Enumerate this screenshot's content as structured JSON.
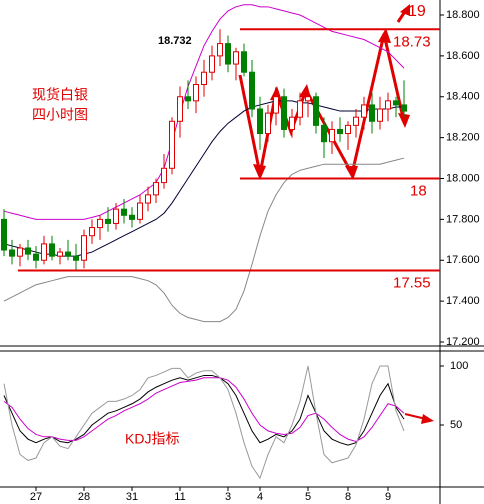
{
  "chart_data": {
    "type": "candlestick",
    "title": "现货白银",
    "subtitle": "四小时图",
    "categories": [
      null,
      null,
      null,
      null,
      "27",
      null,
      null,
      null,
      null,
      null,
      "28",
      null,
      null,
      null,
      null,
      null,
      "31",
      null,
      null,
      null,
      null,
      null,
      "11",
      null,
      null,
      null,
      null,
      null,
      "3",
      null,
      null,
      null,
      "4",
      null,
      null,
      null,
      null,
      null,
      "5",
      null,
      null,
      null,
      null,
      "8",
      null,
      null,
      null,
      null,
      "9",
      null,
      null
    ],
    "open": [
      17.8,
      17.65,
      17.62,
      17.66,
      17.63,
      17.6,
      17.68,
      17.62,
      17.64,
      17.62,
      17.6,
      17.72,
      17.76,
      17.8,
      17.78,
      17.85,
      17.82,
      17.8,
      17.88,
      17.92,
      17.98,
      18.05,
      18.28,
      18.4,
      18.38,
      18.46,
      18.52,
      18.6,
      18.66,
      18.56,
      18.62,
      18.52,
      18.34,
      18.22,
      18.32,
      18.4,
      18.24,
      18.3,
      18.38,
      18.4,
      18.26,
      18.18,
      18.24,
      18.22,
      18.26,
      18.3,
      18.36,
      18.28,
      18.34,
      18.38,
      18.36
    ],
    "high": [
      17.85,
      17.7,
      17.68,
      17.7,
      17.67,
      17.72,
      17.72,
      17.66,
      17.7,
      17.68,
      17.75,
      17.8,
      17.82,
      17.86,
      17.88,
      17.9,
      17.86,
      17.92,
      17.96,
      18.0,
      18.12,
      18.3,
      18.45,
      18.48,
      18.5,
      18.58,
      18.65,
      18.73,
      18.7,
      18.64,
      18.66,
      18.58,
      18.4,
      18.36,
      18.44,
      18.44,
      18.34,
      18.42,
      18.44,
      18.42,
      18.3,
      18.28,
      18.3,
      18.28,
      18.34,
      18.4,
      18.42,
      18.4,
      18.42,
      18.4,
      18.48
    ],
    "low": [
      17.62,
      17.58,
      17.57,
      17.6,
      17.56,
      17.58,
      17.6,
      17.58,
      17.6,
      17.55,
      17.56,
      17.68,
      17.7,
      17.74,
      17.75,
      17.78,
      17.76,
      17.78,
      17.84,
      17.88,
      17.95,
      18.02,
      18.2,
      18.34,
      18.32,
      18.4,
      18.48,
      18.55,
      18.52,
      18.48,
      18.5,
      18.3,
      18.14,
      18.18,
      18.26,
      18.2,
      18.2,
      18.26,
      18.3,
      18.22,
      18.1,
      18.12,
      18.18,
      18.14,
      18.2,
      18.24,
      18.22,
      18.24,
      18.28,
      18.3,
      18.3
    ],
    "close": [
      17.65,
      17.62,
      17.66,
      17.63,
      17.6,
      17.68,
      17.62,
      17.64,
      17.62,
      17.6,
      17.72,
      17.76,
      17.8,
      17.78,
      17.85,
      17.82,
      17.8,
      17.88,
      17.92,
      17.98,
      18.05,
      18.28,
      18.4,
      18.38,
      18.46,
      18.52,
      18.6,
      18.66,
      18.56,
      18.62,
      18.52,
      18.34,
      18.22,
      18.32,
      18.4,
      18.24,
      18.3,
      18.38,
      18.4,
      18.26,
      18.18,
      18.24,
      18.22,
      18.26,
      18.3,
      18.36,
      18.28,
      18.34,
      18.38,
      18.36,
      18.33
    ],
    "up_color": "#e00000",
    "down_color": "#008000",
    "series": [
      {
        "color": "#cc00cc",
        "values": [
          17.84,
          17.83,
          17.82,
          17.81,
          17.8,
          17.8,
          17.8,
          17.8,
          17.8,
          17.8,
          17.8,
          17.81,
          17.82,
          17.84,
          17.86,
          17.88,
          17.9,
          17.92,
          17.95,
          17.98,
          18.05,
          18.18,
          18.32,
          18.45,
          18.55,
          18.65,
          18.72,
          18.78,
          18.82,
          18.84,
          18.85,
          18.85,
          18.84,
          18.84,
          18.83,
          18.82,
          18.81,
          18.8,
          18.78,
          18.76,
          18.74,
          18.72,
          18.71,
          18.7,
          18.69,
          18.68,
          18.66,
          18.64,
          18.62,
          18.58,
          18.54
        ]
      },
      {
        "color": "#000033",
        "values": [
          17.68,
          17.67,
          17.66,
          17.65,
          17.64,
          17.63,
          17.63,
          17.62,
          17.62,
          17.62,
          17.63,
          17.64,
          17.66,
          17.68,
          17.7,
          17.72,
          17.74,
          17.76,
          17.78,
          17.8,
          17.83,
          17.88,
          17.94,
          18.0,
          18.06,
          18.12,
          18.18,
          18.23,
          18.27,
          18.3,
          18.33,
          18.35,
          18.36,
          18.37,
          18.38,
          18.38,
          18.38,
          18.37,
          18.37,
          18.36,
          18.35,
          18.34,
          18.33,
          18.33,
          18.33,
          18.33,
          18.34,
          18.34,
          18.34,
          18.35,
          18.35
        ]
      },
      {
        "color": "#888888",
        "values": [
          17.4,
          17.42,
          17.44,
          17.46,
          17.48,
          17.49,
          17.5,
          17.51,
          17.52,
          17.52,
          17.52,
          17.52,
          17.52,
          17.52,
          17.52,
          17.52,
          17.52,
          17.51,
          17.5,
          17.48,
          17.44,
          17.38,
          17.34,
          17.32,
          17.31,
          17.3,
          17.3,
          17.3,
          17.32,
          17.36,
          17.45,
          17.58,
          17.72,
          17.84,
          17.92,
          17.98,
          18.02,
          18.04,
          18.05,
          18.06,
          18.07,
          18.07,
          18.07,
          18.07,
          18.07,
          18.07,
          18.07,
          18.07,
          18.08,
          18.09,
          18.1
        ]
      }
    ],
    "ylim": [
      17.2,
      18.8
    ],
    "yticks": [
      {
        "value": 17.2,
        "label": "17.200"
      },
      {
        "value": 17.4,
        "label": "17.400"
      },
      {
        "value": 17.6,
        "label": "17.600"
      },
      {
        "value": 17.8,
        "label": "17.800"
      },
      {
        "value": 18.0,
        "label": "18.000"
      },
      {
        "value": 18.2,
        "label": "18.200"
      },
      {
        "value": 18.4,
        "label": "18.400"
      },
      {
        "value": 18.6,
        "label": "18.600"
      },
      {
        "value": 18.8,
        "label": "18.800"
      }
    ],
    "peak_label": 18.732,
    "levels": [
      18.73,
      18,
      17.55
    ],
    "target": 19,
    "level_color": "#e00000",
    "indicator": {
      "title": "KDJ指标",
      "ylim": [
        0,
        100
      ],
      "yticks": [
        50,
        100
      ],
      "series": [
        {
          "color": "#000000",
          "values": [
            75,
            60,
            45,
            38,
            35,
            38,
            40,
            36,
            35,
            38,
            42,
            50,
            55,
            60,
            62,
            65,
            68,
            72,
            78,
            82,
            85,
            88,
            90,
            88,
            90,
            92,
            92,
            90,
            85,
            75,
            60,
            45,
            35,
            38,
            42,
            40,
            45,
            55,
            75,
            60,
            45,
            38,
            35,
            33,
            35,
            45,
            60,
            75,
            85,
            65,
            55
          ]
        },
        {
          "color": "#cc00cc",
          "values": [
            70,
            65,
            55,
            47,
            42,
            40,
            40,
            38,
            37,
            37,
            40,
            45,
            50,
            55,
            58,
            62,
            65,
            68,
            72,
            77,
            80,
            83,
            86,
            87,
            88,
            90,
            90,
            90,
            88,
            82,
            72,
            60,
            50,
            45,
            43,
            42,
            43,
            48,
            58,
            60,
            55,
            48,
            42,
            38,
            36,
            40,
            48,
            58,
            68,
            66,
            60
          ]
        },
        {
          "color": "#999999",
          "values": [
            85,
            50,
            25,
            20,
            22,
            35,
            40,
            32,
            30,
            40,
            50,
            60,
            65,
            70,
            70,
            72,
            75,
            80,
            90,
            92,
            95,
            98,
            98,
            90,
            94,
            96,
            96,
            90,
            80,
            60,
            35,
            15,
            5,
            25,
            40,
            35,
            50,
            70,
            100,
            60,
            25,
            18,
            20,
            22,
            33,
            55,
            85,
            100,
            100,
            62,
            45
          ]
        }
      ]
    }
  }
}
